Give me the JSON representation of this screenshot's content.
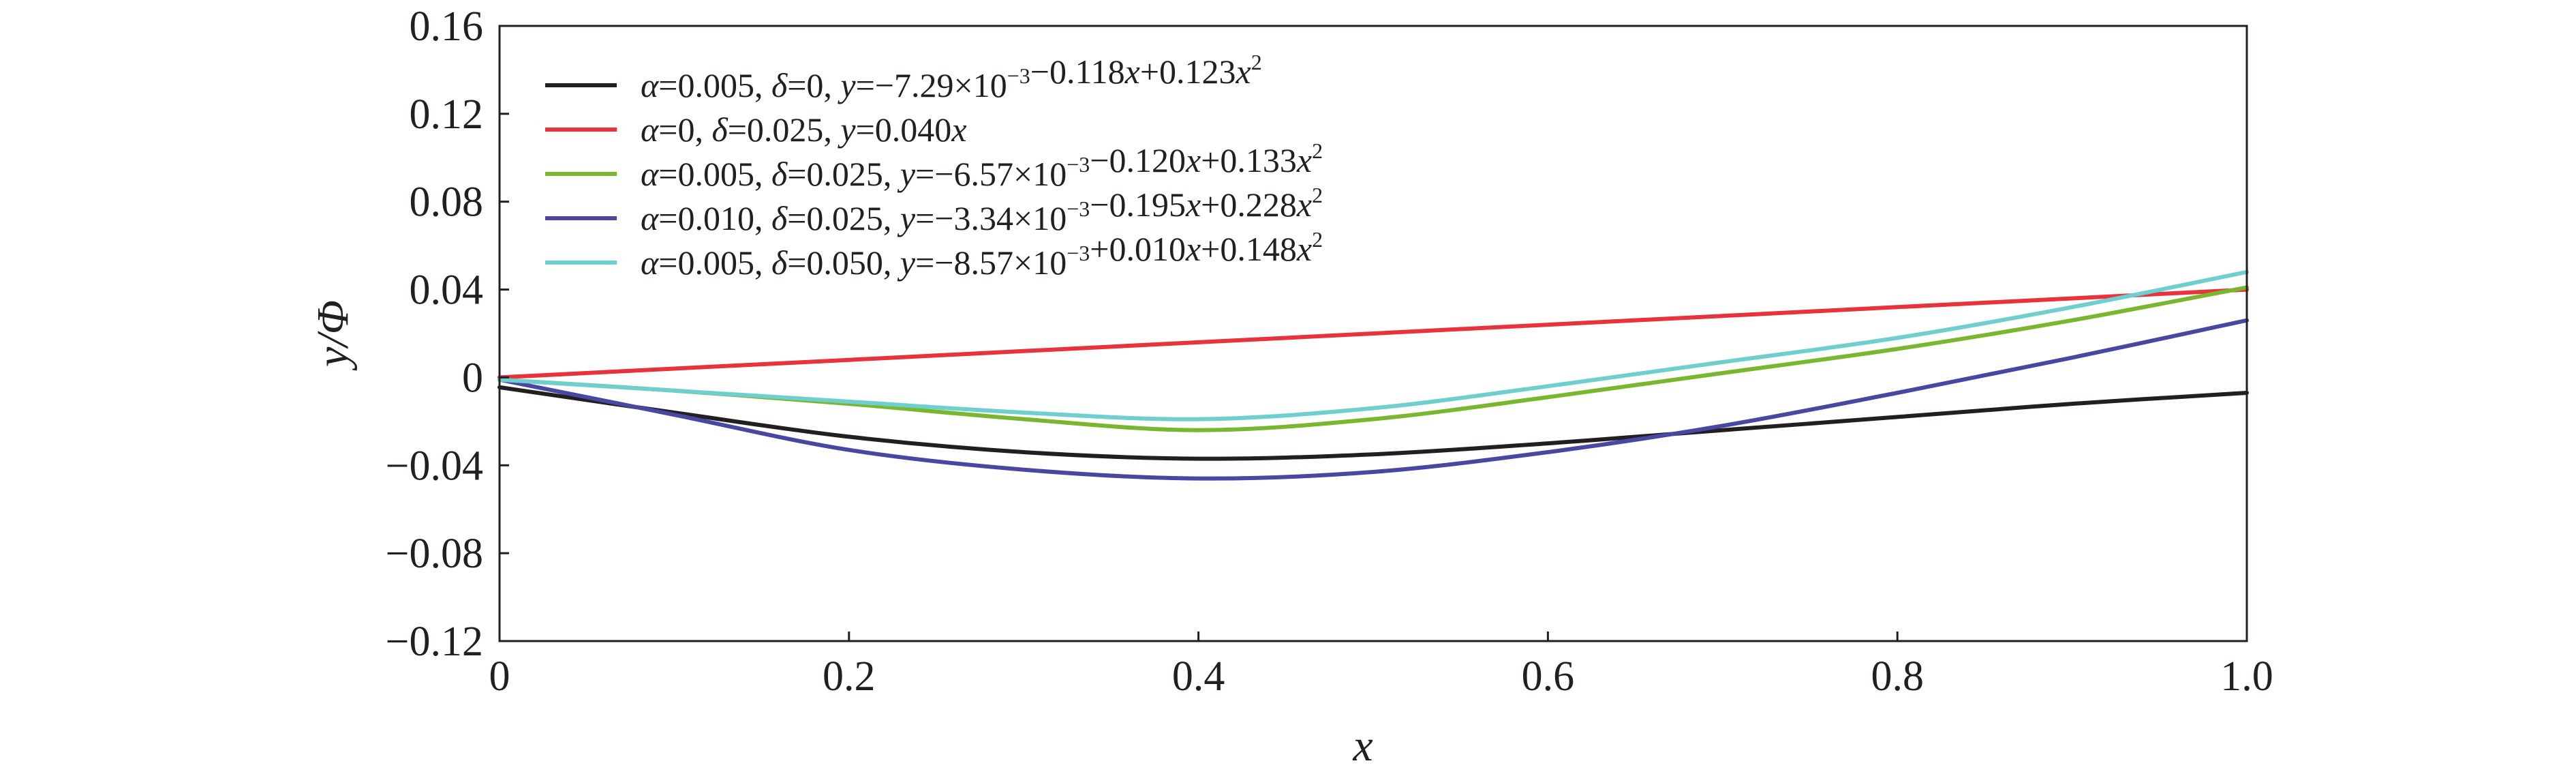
{
  "chart_data": {
    "type": "line",
    "xlabel": "x",
    "ylabel": "y/Φ",
    "xlim": [
      0,
      1.0
    ],
    "ylim": [
      -0.12,
      0.16
    ],
    "x_ticks": [
      0,
      0.2,
      0.4,
      0.6,
      0.8,
      1.0
    ],
    "x_tick_labels": [
      "0",
      "0.2",
      "0.4",
      "0.6",
      "0.8",
      "1.0"
    ],
    "y_ticks": [
      -0.12,
      -0.08,
      -0.04,
      0,
      0.04,
      0.08,
      0.12,
      0.16
    ],
    "y_tick_labels": [
      "−0.12",
      "−0.08",
      "−0.04",
      "0",
      "0.04",
      "0.08",
      "0.12",
      "0.16"
    ],
    "grid": false,
    "legend_position": "top-left",
    "x": [
      0,
      0.1,
      0.2,
      0.3,
      0.4,
      0.5,
      0.6,
      0.7,
      0.8,
      0.9,
      1.0
    ],
    "series": [
      {
        "name": "α=0.005, δ=0, y=−7.29×10−3−0.118x+0.123x2",
        "color": "#231f20",
        "values": [
          -0.0045,
          -0.016,
          -0.027,
          -0.034,
          -0.037,
          -0.035,
          -0.03,
          -0.024,
          -0.018,
          -0.012,
          -0.007
        ]
      },
      {
        "name": "α=0, δ=0.025, y=0.040x",
        "color": "#e8323c",
        "values": [
          0.0,
          0.004,
          0.008,
          0.012,
          0.016,
          0.02,
          0.024,
          0.028,
          0.032,
          0.036,
          0.04
        ]
      },
      {
        "name": "α=0.005, δ=0.025, y=−6.57×10−3−0.120x+0.133x2",
        "color": "#7ab630",
        "values": [
          -0.001,
          -0.006,
          -0.012,
          -0.019,
          -0.024,
          -0.019,
          -0.009,
          0.002,
          0.013,
          0.026,
          0.041
        ]
      },
      {
        "name": "α=0.010, δ=0.025, y=−3.34×10−3−0.195x+0.228x2",
        "color": "#4a47a3",
        "values": [
          -0.001,
          -0.017,
          -0.033,
          -0.042,
          -0.046,
          -0.043,
          -0.034,
          -0.022,
          -0.007,
          0.009,
          0.026
        ]
      },
      {
        "name": "α=0.005, δ=0.050, y=−8.57×10−3+0.010x+0.148x2",
        "color": "#6fcfcf",
        "values": [
          -0.001,
          -0.006,
          -0.011,
          -0.016,
          -0.019,
          -0.014,
          -0.004,
          0.007,
          0.018,
          0.032,
          0.048
        ]
      }
    ]
  }
}
